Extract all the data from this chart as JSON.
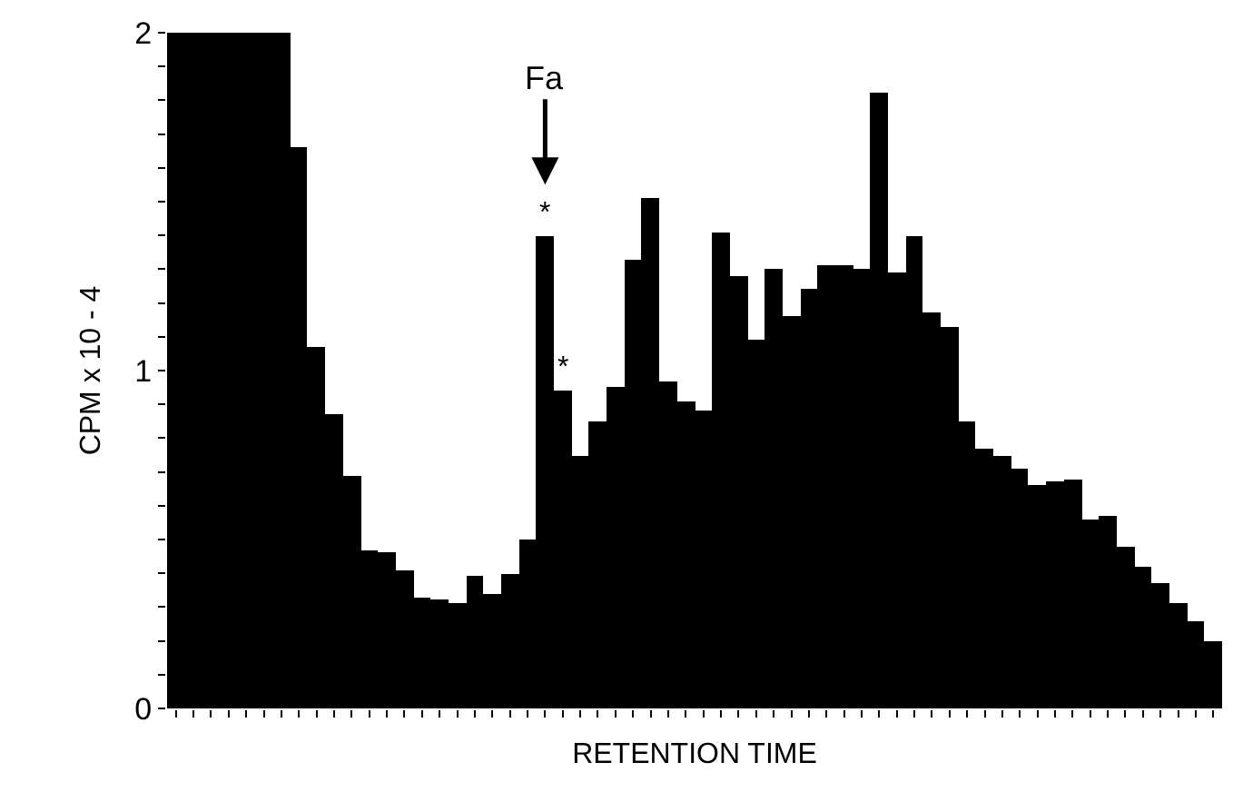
{
  "chart_data": {
    "type": "bar",
    "xlabel": "RETENTION TIME",
    "ylabel": "CPM x 10 - 4",
    "categories": [
      null,
      null,
      null,
      null,
      null,
      null,
      null,
      null,
      null,
      null,
      null,
      null,
      null,
      null,
      null,
      null,
      null,
      null,
      null,
      null,
      null,
      null,
      null,
      null,
      null,
      null,
      null,
      null,
      null,
      null,
      null,
      null,
      null,
      null,
      null,
      null,
      null,
      null,
      null,
      null,
      null,
      null,
      null,
      null,
      null,
      null,
      null,
      null,
      null,
      null,
      null,
      null,
      null,
      null,
      null,
      null,
      null,
      null,
      null,
      null
    ],
    "values": [
      2,
      2,
      2,
      2,
      2,
      2,
      2,
      1.66,
      1.07,
      0.87,
      0.69,
      0.47,
      0.46,
      0.41,
      0.33,
      0.32,
      0.31,
      0.39,
      0.34,
      0.4,
      0.5,
      1.4,
      0.94,
      0.75,
      0.85,
      0.95,
      1.33,
      1.51,
      0.97,
      0.91,
      0.88,
      1.41,
      1.28,
      1.09,
      1.3,
      1.16,
      1.24,
      1.31,
      1.31,
      1.3,
      1.82,
      1.29,
      1.4,
      1.17,
      1.13,
      0.85,
      0.77,
      0.75,
      0.71,
      0.66,
      0.67,
      0.68,
      0.56,
      0.57,
      0.48,
      0.42,
      0.37,
      0.31,
      0.26,
      0.2
    ],
    "color": "#000000",
    "ylim": [
      0,
      2
    ],
    "yticks": [
      0,
      {
        "value": 0.1,
        "label": null
      },
      {
        "value": 0.2,
        "label": null
      },
      {
        "value": 0.3,
        "label": null
      },
      {
        "value": 0.4,
        "label": null
      },
      {
        "value": 0.5,
        "label": null
      },
      {
        "value": 0.6,
        "label": null
      },
      {
        "value": 0.7,
        "label": null
      },
      {
        "value": 0.8,
        "label": null
      },
      {
        "value": 0.9,
        "label": null
      },
      1,
      {
        "value": 1.1,
        "label": null
      },
      {
        "value": 1.2,
        "label": null
      },
      {
        "value": 1.3,
        "label": null
      },
      {
        "value": 1.4,
        "label": null
      },
      {
        "value": 1.5,
        "label": null
      },
      {
        "value": 1.6,
        "label": null
      },
      {
        "value": 1.7,
        "label": null
      },
      {
        "value": 1.8,
        "label": null
      },
      {
        "value": 1.9,
        "label": null
      },
      2
    ],
    "annotations": [
      {
        "text": "*",
        "y": 1.4
      },
      {
        "text": "Fa",
        "y": 1.4
      },
      {
        "text": "*",
        "y": 0.94
      }
    ],
    "legend": false
  }
}
